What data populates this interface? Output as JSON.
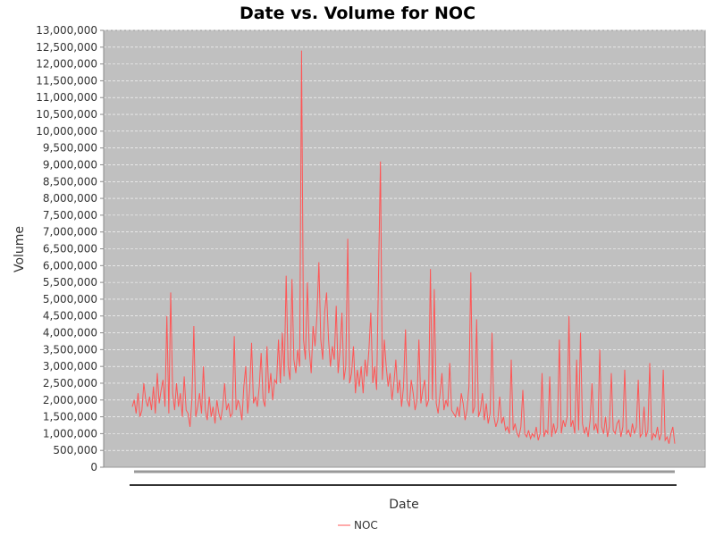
{
  "chart_data": {
    "type": "line",
    "title": "Date vs. Volume for NOC",
    "xlabel": "Date",
    "ylabel": "Volume",
    "ylim": [
      0,
      13000000
    ],
    "yticks": [
      {
        "value": 0,
        "label": "0"
      },
      {
        "value": 500000,
        "label": "500,000"
      },
      {
        "value": 1000000,
        "label": "1,000,000"
      },
      {
        "value": 1500000,
        "label": "1,500,000"
      },
      {
        "value": 2000000,
        "label": "2,000,000"
      },
      {
        "value": 2500000,
        "label": "2,500,000"
      },
      {
        "value": 3000000,
        "label": "3,000,000"
      },
      {
        "value": 3500000,
        "label": "3,500,000"
      },
      {
        "value": 4000000,
        "label": "4,000,000"
      },
      {
        "value": 4500000,
        "label": "4,500,000"
      },
      {
        "value": 5000000,
        "label": "5,000,000"
      },
      {
        "value": 5500000,
        "label": "5,500,000"
      },
      {
        "value": 6000000,
        "label": "6,000,000"
      },
      {
        "value": 6500000,
        "label": "6,500,000"
      },
      {
        "value": 7000000,
        "label": "7,000,000"
      },
      {
        "value": 7500000,
        "label": "7,500,000"
      },
      {
        "value": 8000000,
        "label": "8,000,000"
      },
      {
        "value": 8500000,
        "label": "8,500,000"
      },
      {
        "value": 9000000,
        "label": "9,000,000"
      },
      {
        "value": 9500000,
        "label": "9,500,000"
      },
      {
        "value": 10000000,
        "label": "10,000,000"
      },
      {
        "value": 10500000,
        "label": "10,500,000"
      },
      {
        "value": 11000000,
        "label": "11,000,000"
      },
      {
        "value": 11500000,
        "label": "11,500,000"
      },
      {
        "value": 12000000,
        "label": "12,000,000"
      },
      {
        "value": 12500000,
        "label": "12,500,000"
      },
      {
        "value": 13000000,
        "label": "13,000,000"
      }
    ],
    "grid": true,
    "legend_position": "bottom-center",
    "colors": {
      "plot_background": "#c0c0c0",
      "gridline": "#ffffff",
      "series": "#ff5555"
    },
    "series": [
      {
        "name": "NOC",
        "color": "#ff5555",
        "values": [
          1800000,
          2000000,
          1600000,
          2200000,
          1500000,
          1700000,
          2500000,
          2000000,
          1800000,
          2100000,
          1700000,
          2400000,
          1600000,
          2800000,
          1900000,
          2300000,
          2600000,
          1800000,
          4500000,
          1600000,
          5200000,
          2200000,
          1700000,
          2500000,
          1800000,
          2200000,
          1500000,
          2700000,
          1700000,
          1600000,
          1200000,
          2000000,
          4200000,
          1500000,
          1800000,
          2200000,
          1600000,
          3000000,
          1700000,
          1400000,
          2100000,
          1500000,
          1800000,
          1300000,
          2000000,
          1600000,
          1400000,
          1800000,
          2500000,
          1700000,
          1900000,
          1500000,
          1600000,
          3900000,
          1700000,
          2000000,
          1800000,
          1400000,
          2400000,
          3000000,
          1600000,
          2300000,
          3700000,
          1900000,
          2100000,
          1800000,
          2400000,
          3400000,
          2000000,
          1800000,
          3600000,
          2200000,
          2800000,
          2000000,
          2600000,
          2500000,
          3800000,
          2500000,
          4000000,
          2700000,
          5700000,
          3000000,
          2600000,
          5600000,
          3200000,
          2800000,
          3500000,
          3000000,
          12400000,
          3800000,
          3200000,
          5500000,
          3500000,
          2800000,
          4200000,
          3600000,
          4500000,
          6100000,
          3800000,
          3200000,
          4600000,
          5200000,
          3800000,
          3000000,
          3600000,
          3200000,
          4800000,
          2800000,
          3500000,
          4600000,
          2600000,
          3000000,
          6800000,
          2500000,
          2800000,
          3600000,
          2200000,
          2900000,
          2400000,
          3000000,
          2200000,
          3200000,
          2700000,
          3500000,
          4600000,
          2500000,
          3000000,
          2300000,
          5700000,
          9100000,
          2600000,
          3800000,
          3000000,
          2400000,
          2800000,
          2000000,
          2500000,
          3200000,
          2200000,
          2600000,
          1800000,
          2400000,
          4100000,
          2000000,
          1800000,
          2600000,
          2200000,
          1700000,
          2000000,
          3800000,
          1900000,
          2300000,
          2600000,
          1800000,
          2000000,
          5900000,
          2000000,
          5300000,
          1900000,
          1600000,
          2200000,
          2800000,
          1700000,
          2000000,
          1800000,
          3100000,
          1700000,
          1600000,
          1500000,
          1800000,
          1500000,
          2200000,
          1900000,
          1400000,
          1700000,
          2400000,
          5800000,
          1600000,
          1800000,
          4400000,
          1500000,
          1700000,
          2200000,
          1400000,
          1900000,
          1300000,
          1600000,
          4000000,
          1500000,
          1200000,
          1400000,
          2100000,
          1300000,
          1500000,
          1100000,
          1200000,
          1000000,
          3200000,
          1100000,
          1300000,
          1000000,
          900000,
          1200000,
          2300000,
          1000000,
          900000,
          1100000,
          850000,
          1000000,
          900000,
          1200000,
          800000,
          1000000,
          2800000,
          900000,
          1100000,
          1000000,
          2700000,
          900000,
          1300000,
          1000000,
          1200000,
          3800000,
          1000000,
          1400000,
          1200000,
          1500000,
          4500000,
          1200000,
          1400000,
          1000000,
          3200000,
          1100000,
          4000000,
          1300000,
          1000000,
          1200000,
          900000,
          1400000,
          2500000,
          1100000,
          1300000,
          1000000,
          3500000,
          1200000,
          1000000,
          1500000,
          900000,
          1200000,
          2800000,
          1100000,
          1000000,
          1300000,
          1400000,
          900000,
          1200000,
          2900000,
          1000000,
          1100000,
          900000,
          1300000,
          1000000,
          1200000,
          2600000,
          900000,
          1000000,
          1800000,
          900000,
          1100000,
          3100000,
          800000,
          1000000,
          900000,
          1200000,
          800000,
          1000000,
          2900000,
          800000,
          900000,
          700000,
          1000000,
          1200000,
          700000
        ]
      }
    ]
  }
}
